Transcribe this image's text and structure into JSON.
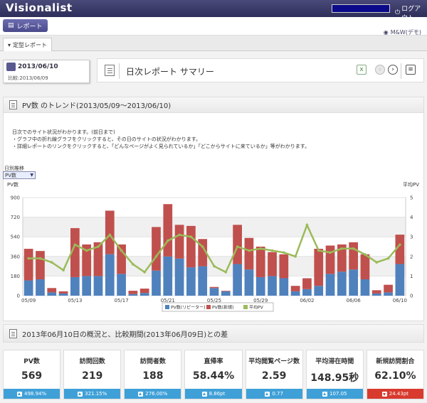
{
  "app": {
    "logo": "Visionalist",
    "logout": "ログアウト"
  },
  "toolbar": {
    "report_label": "レポート"
  },
  "tabs": [
    {
      "label": "定型レポート"
    }
  ],
  "account": {
    "label": "M&W(デモ)"
  },
  "date": {
    "current": "2013/06/10",
    "compare": "比較:2013/06/09"
  },
  "header": {
    "title": "日次レポート サマリー"
  },
  "trend": {
    "title": "PV数 のトレンド(2013/05/09〜2013/06/10)",
    "desc": [
      "日次でのサイト状況がわかります。(前日まで)",
      "・グラフ中の折れ線グラフをクリックすると、その日のサイトの状況がわかります。",
      "・詳細レポートのリンクをクリックすると、「どんなページがよく見られているか」「どこからサイトに来ているか」等がわかります。"
    ],
    "daily_label": "日別推移",
    "select_value": "PV数",
    "left_axis": "PV数",
    "right_axis": "平均PV"
  },
  "chart_data": {
    "type": "bar",
    "stacked": true,
    "categories": [
      "05/09",
      "05/10",
      "05/11",
      "05/12",
      "05/13",
      "05/14",
      "05/15",
      "05/16",
      "05/17",
      "05/18",
      "05/19",
      "05/20",
      "05/21",
      "05/22",
      "05/23",
      "05/24",
      "05/25",
      "05/26",
      "05/27",
      "05/28",
      "05/29",
      "05/30",
      "05/31",
      "06/01",
      "06/02",
      "06/03",
      "06/04",
      "06/05",
      "06/06",
      "06/07",
      "06/08",
      "06/09",
      "06/10"
    ],
    "tick_labels": [
      "05/09",
      "05/13",
      "05/17",
      "05/21",
      "05/25",
      "05/29",
      "06/02",
      "06/06",
      "06/10"
    ],
    "series": [
      {
        "name": "PV数(リピーター)",
        "color": "#4f81bd",
        "values": [
          140,
          150,
          30,
          20,
          170,
          180,
          180,
          380,
          200,
          15,
          25,
          230,
          360,
          340,
          260,
          270,
          70,
          40,
          290,
          240,
          170,
          180,
          160,
          40,
          60,
          90,
          200,
          220,
          240,
          150,
          20,
          30,
          290
        ]
      },
      {
        "name": "PV数(新規)",
        "color": "#c0504d",
        "values": [
          290,
          260,
          40,
          20,
          450,
          290,
          310,
          400,
          270,
          30,
          40,
          400,
          480,
          310,
          380,
          250,
          10,
          5,
          360,
          290,
          280,
          220,
          220,
          50,
          100,
          340,
          260,
          250,
          250,
          230,
          30,
          70,
          270
        ]
      }
    ],
    "line": {
      "name": "平均PV",
      "color": "#9bbb59",
      "values": [
        1.9,
        1.9,
        1.7,
        1.3,
        2.6,
        2.3,
        2.5,
        3.1,
        2.3,
        1.6,
        1.2,
        2.0,
        2.8,
        3.1,
        3.0,
        2.5,
        1.5,
        1.2,
        2.5,
        2.3,
        2.4,
        2.3,
        2.2,
        2.0,
        3.6,
        2.3,
        2.2,
        2.4,
        2.4,
        2.1,
        1.7,
        1.9,
        2.6
      ]
    },
    "ylim_left": [
      0,
      900
    ],
    "yticks_left": [
      "0",
      "180",
      "360",
      "540",
      "720",
      "900"
    ],
    "ylim_right": [
      0,
      5
    ],
    "yticks_right": [
      "0",
      "1",
      "2",
      "3",
      "4",
      "5"
    ],
    "legend": [
      "PV数(リピーター)",
      "PV数(新規)",
      "平均PV"
    ]
  },
  "summary": {
    "title": "2013年06月10日の概況と、比較期間(2013年06月09日)との差",
    "stats": [
      {
        "label": "PV数",
        "value": "569",
        "delta": "498.94%",
        "dir": "up",
        "color": "#3fa0d8"
      },
      {
        "label": "訪問回数",
        "value": "219",
        "delta": "321.15%",
        "dir": "up",
        "color": "#3fa0d8"
      },
      {
        "label": "訪問者数",
        "value": "188",
        "delta": "276.00%",
        "dir": "up",
        "color": "#3fa0d8"
      },
      {
        "label": "直帰率",
        "value": "58.44%",
        "delta": "8.86pt",
        "dir": "up",
        "color": "#3fa0d8"
      },
      {
        "label": "平均閲覧ページ数",
        "value": "2.59",
        "delta": "0.77",
        "dir": "up",
        "color": "#3fa0d8"
      },
      {
        "label": "平均滞在時間",
        "value": "148.95秒",
        "delta": "107.05",
        "dir": "up",
        "color": "#3fa0d8"
      },
      {
        "label": "新規訪問割合",
        "value": "62.10%",
        "delta": "24.43pt",
        "dir": "down",
        "color": "#d83a2e"
      }
    ]
  }
}
